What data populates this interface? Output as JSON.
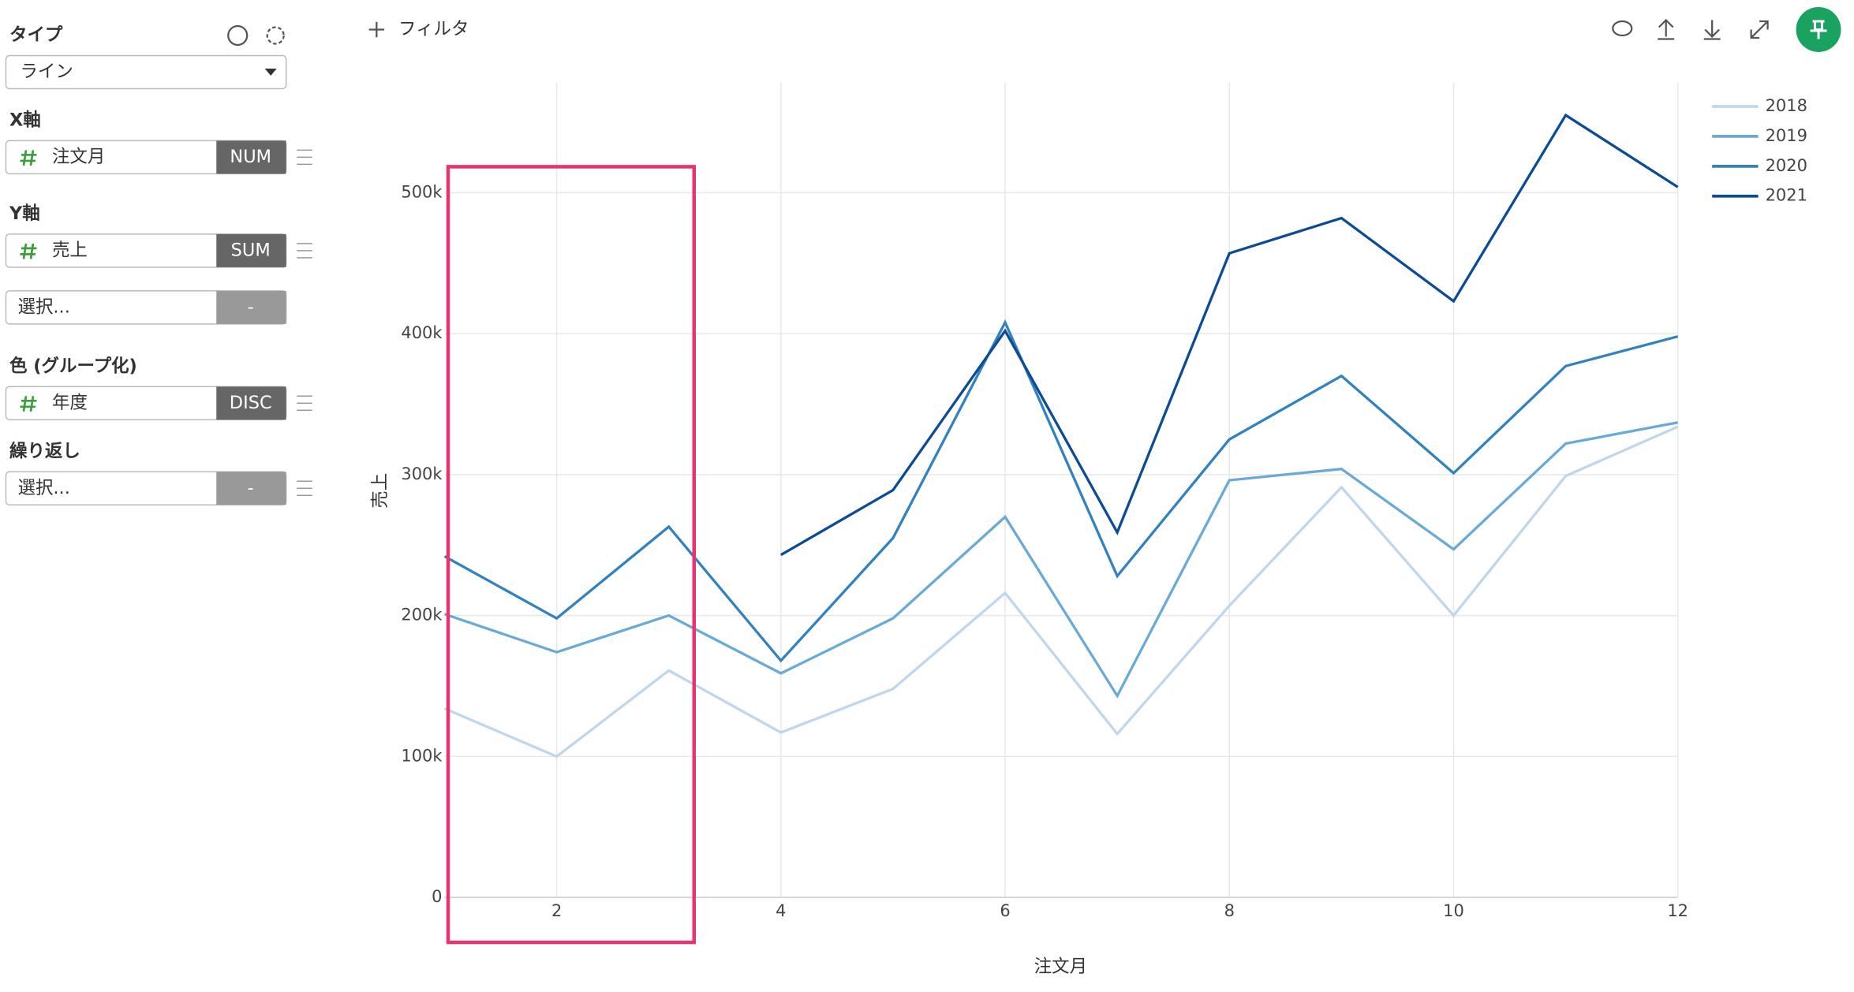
{
  "sidebar": {
    "type_label": "タイプ",
    "type_value": "ライン",
    "x_label": "X軸",
    "x_field": "注文月",
    "x_tag": "NUM",
    "y_label": "Y軸",
    "y_field": "売上",
    "y_tag": "SUM",
    "y2_field": "選択...",
    "y2_tag": "-",
    "color_label": "色 (グループ化)",
    "color_field": "年度",
    "color_tag": "DISC",
    "repeat_label": "繰り返し",
    "repeat_field": "選択...",
    "repeat_tag": "-"
  },
  "toolbar": {
    "filter": "フィルタ"
  },
  "chart_data": {
    "type": "line",
    "x_label": "注文月",
    "y_label": "売上",
    "x": [
      1,
      2,
      3,
      4,
      5,
      6,
      7,
      8,
      9,
      10,
      11,
      12
    ],
    "series": [
      {
        "name": "2018",
        "color": "#bfd6ec",
        "values": [
          134000,
          100000,
          161000,
          117000,
          148000,
          216000,
          116000,
          207000,
          291000,
          200000,
          299000,
          334000
        ]
      },
      {
        "name": "2019",
        "color": "#6aaad6",
        "values": [
          201000,
          174000,
          200000,
          159000,
          198000,
          270000,
          143000,
          296000,
          304000,
          247000,
          322000,
          337000
        ]
      },
      {
        "name": "2020",
        "color": "#3282bf",
        "values": [
          242000,
          198000,
          263000,
          168000,
          255000,
          408000,
          228000,
          325000,
          370000,
          301000,
          377000,
          398000
        ]
      },
      {
        "name": "2021",
        "color": "#0d4c95",
        "values": [
          null,
          null,
          null,
          243000,
          289000,
          402000,
          259000,
          457000,
          482000,
          423000,
          555000,
          504000
        ]
      }
    ],
    "xlim": [
      1,
      12
    ],
    "ylim": [
      0,
      578000
    ],
    "xticks": [
      2,
      4,
      6,
      8,
      10,
      12
    ],
    "yticks": [
      0,
      {
        "value": 100000,
        "label": "100k"
      },
      {
        "value": 200000,
        "label": "200k"
      },
      {
        "value": 300000,
        "label": "300k"
      },
      {
        "value": 400000,
        "label": "400k"
      },
      {
        "value": 500000,
        "label": "500k"
      }
    ],
    "grid": true,
    "legend": "top-right"
  }
}
